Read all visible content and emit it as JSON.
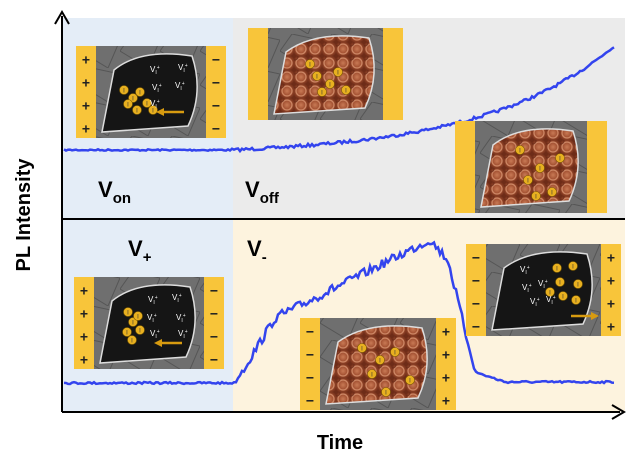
{
  "axes": {
    "y_label": "PL Intensity",
    "x_label": "Time"
  },
  "top": {
    "labels": [
      {
        "main": "V",
        "sub": "on"
      },
      {
        "main": "V",
        "sub": "off"
      }
    ]
  },
  "bottom": {
    "labels": [
      {
        "main": "V",
        "sub": "+"
      },
      {
        "main": "V",
        "sub": "-"
      }
    ]
  },
  "vacancy_label": {
    "main": "V",
    "sub": "I",
    "sup": "+"
  },
  "iodide_label": "I",
  "insets": [
    {
      "left_signs": [
        "+",
        "+",
        "+",
        "+"
      ],
      "right_signs": [
        "−",
        "−",
        "−",
        "−"
      ]
    },
    {
      "left_signs": [],
      "right_signs": []
    },
    {
      "left_signs": [],
      "right_signs": []
    },
    {
      "left_signs": [
        "+",
        "+",
        "+",
        "+"
      ],
      "right_signs": [
        "−",
        "−",
        "−",
        "−"
      ]
    },
    {
      "left_signs": [
        "−",
        "−",
        "−",
        "−"
      ],
      "right_signs": [
        "+",
        "+",
        "+",
        "+"
      ]
    },
    {
      "left_signs": [
        "−",
        "−",
        "−",
        "−"
      ],
      "right_signs": [
        "+",
        "+",
        "+",
        "+"
      ]
    }
  ]
}
